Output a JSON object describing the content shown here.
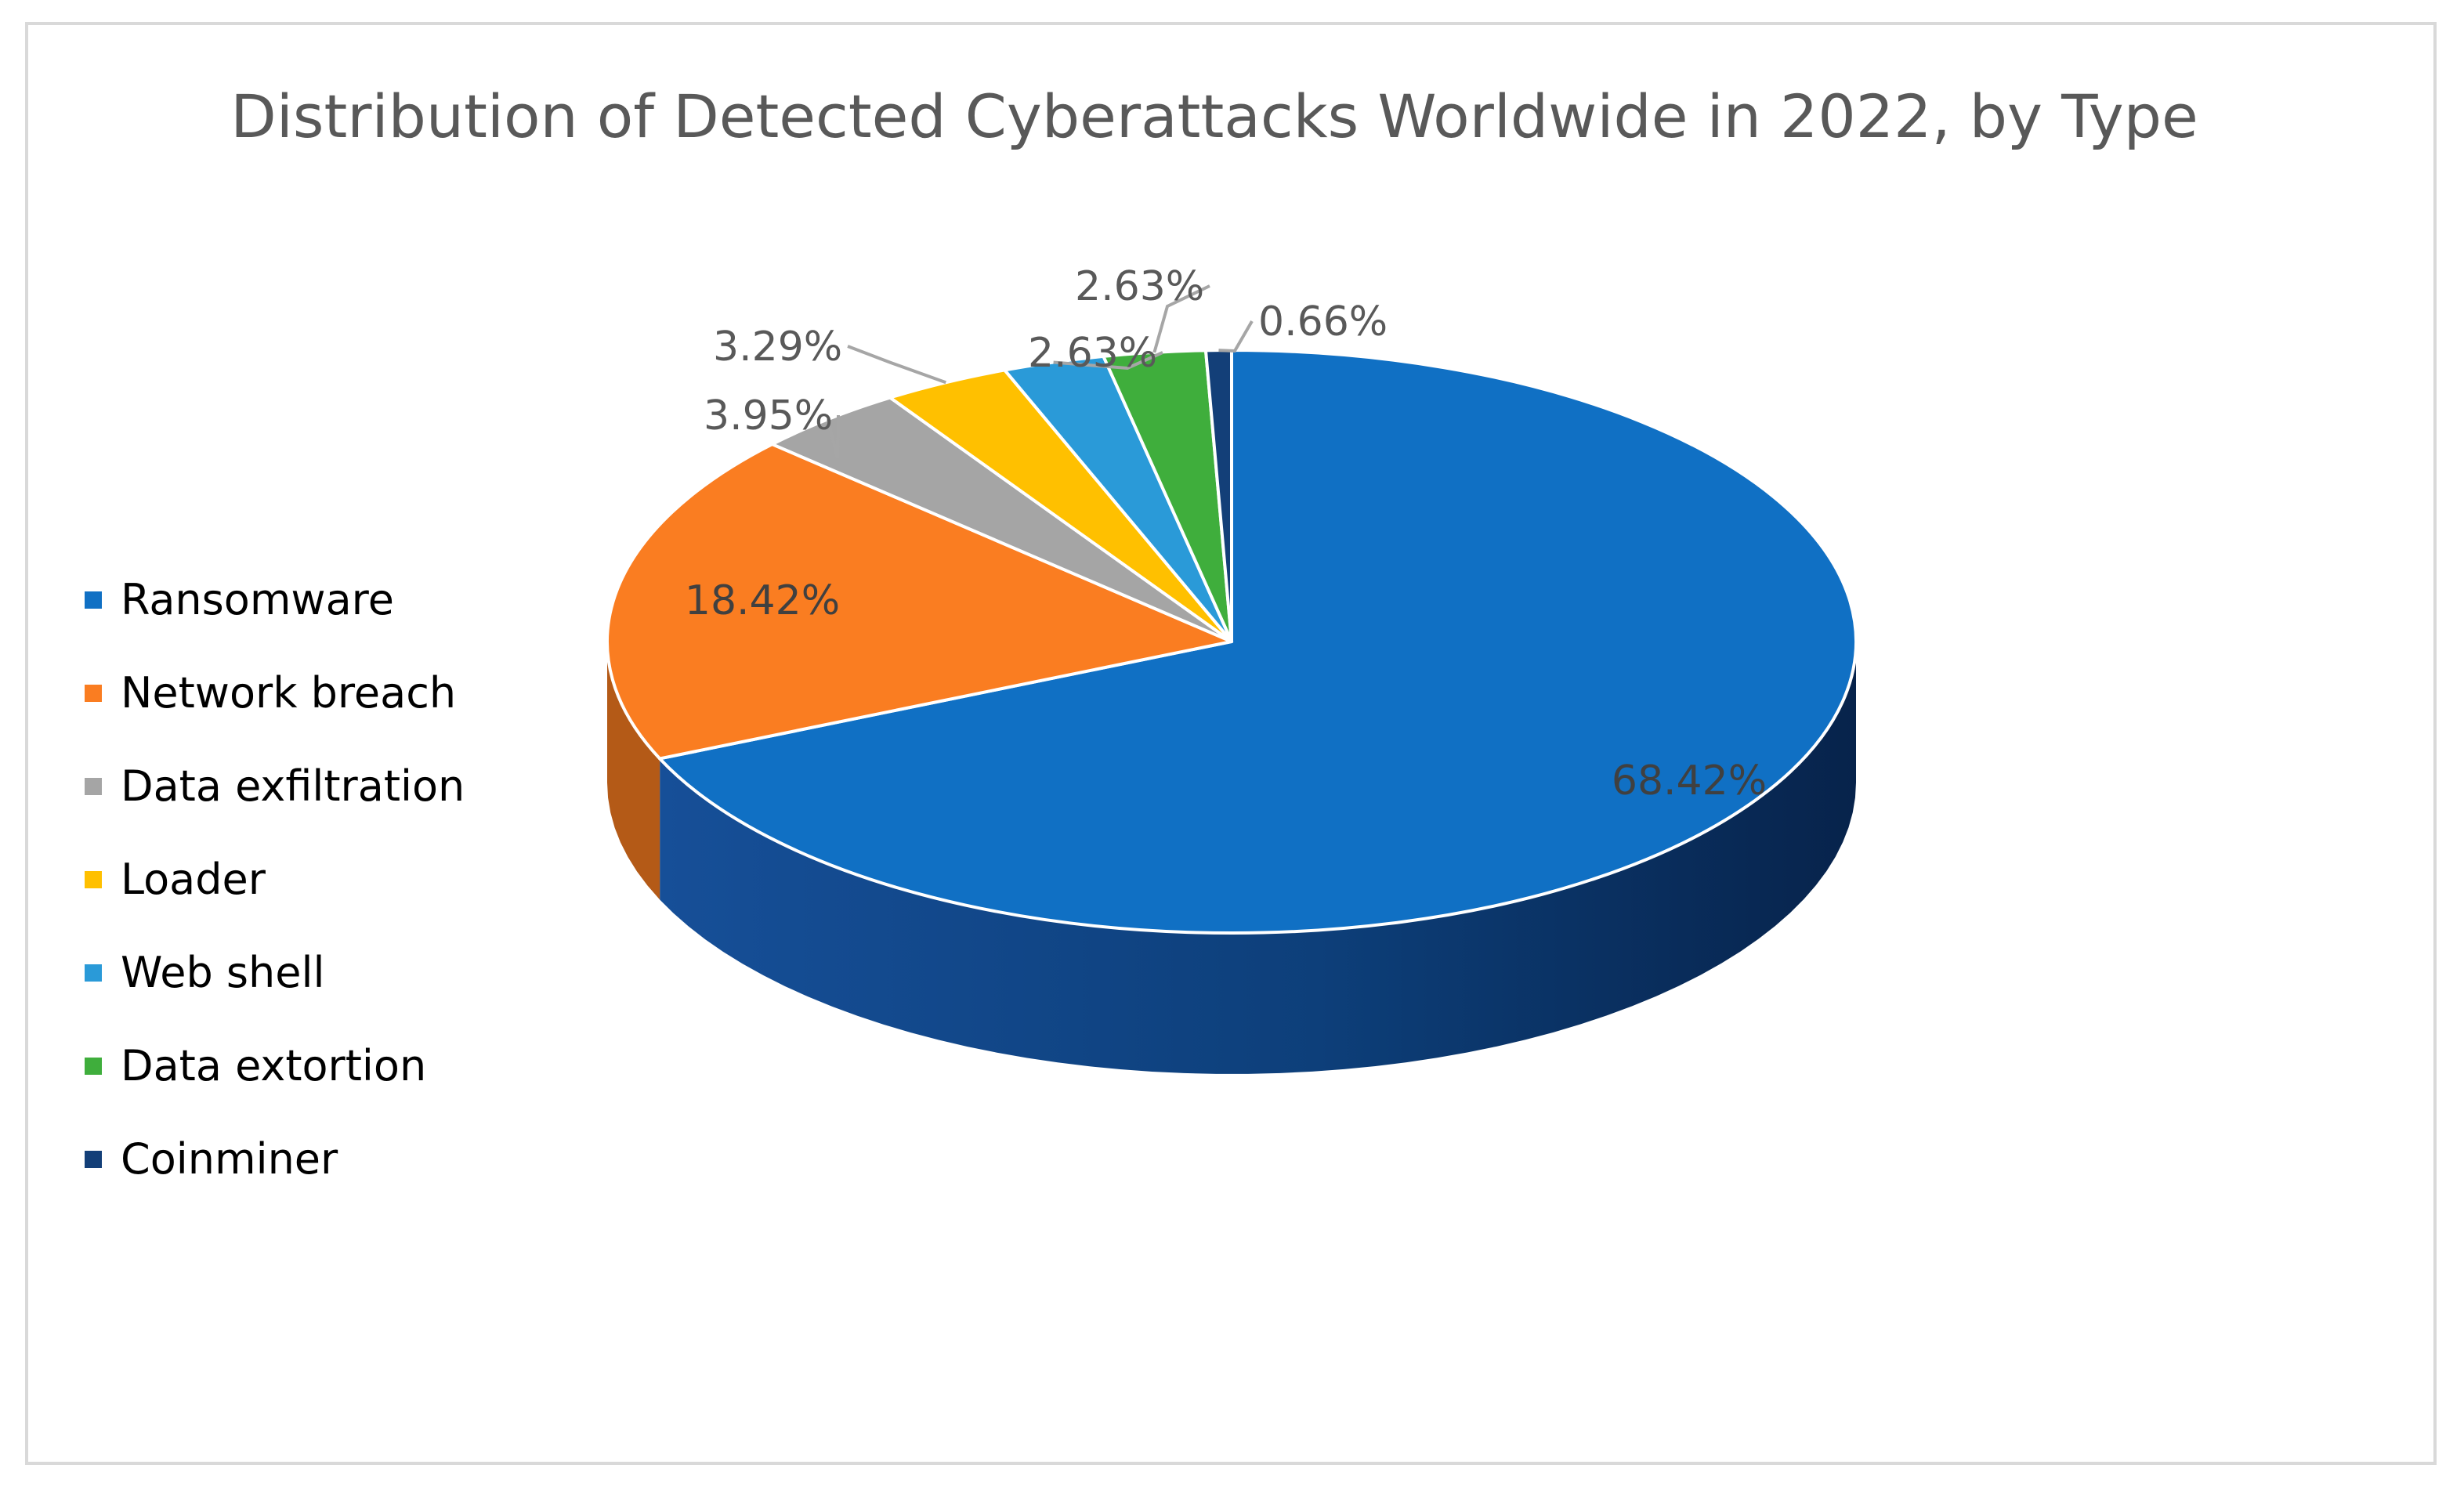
{
  "chart_data": {
    "type": "pie",
    "variant": "3d-exploded-none",
    "title": "Distribution of Detected Cyberattacks Worldwide in 2022, by Type",
    "legend_position": "left",
    "slices": [
      {
        "label": "Ransomware",
        "value": 68.42,
        "data_label": "68.42%",
        "color": "#1070c4",
        "label_color": "#404040"
      },
      {
        "label": "Network breach",
        "value": 18.42,
        "data_label": "18.42%",
        "color": "#fa7d21",
        "label_color": "#404040"
      },
      {
        "label": "Data exfiltration",
        "value": 3.95,
        "data_label": "3.95%",
        "color": "#a5a5a5",
        "label_color": "#595959"
      },
      {
        "label": "Loader",
        "value": 3.29,
        "data_label": "3.29%",
        "color": "#ffc000",
        "label_color": "#595959"
      },
      {
        "label": "Web shell",
        "value": 2.63,
        "data_label": "2.63%",
        "color": "#2a9ad8",
        "label_color": "#595959"
      },
      {
        "label": "Data extortion",
        "value": 2.63,
        "data_label": "2.63%",
        "color": "#3fae3c",
        "label_color": "#595959"
      },
      {
        "label": "Coinminer",
        "value": 0.66,
        "data_label": "0.66%",
        "color": "#133f78",
        "label_color": "#595959"
      }
    ]
  }
}
